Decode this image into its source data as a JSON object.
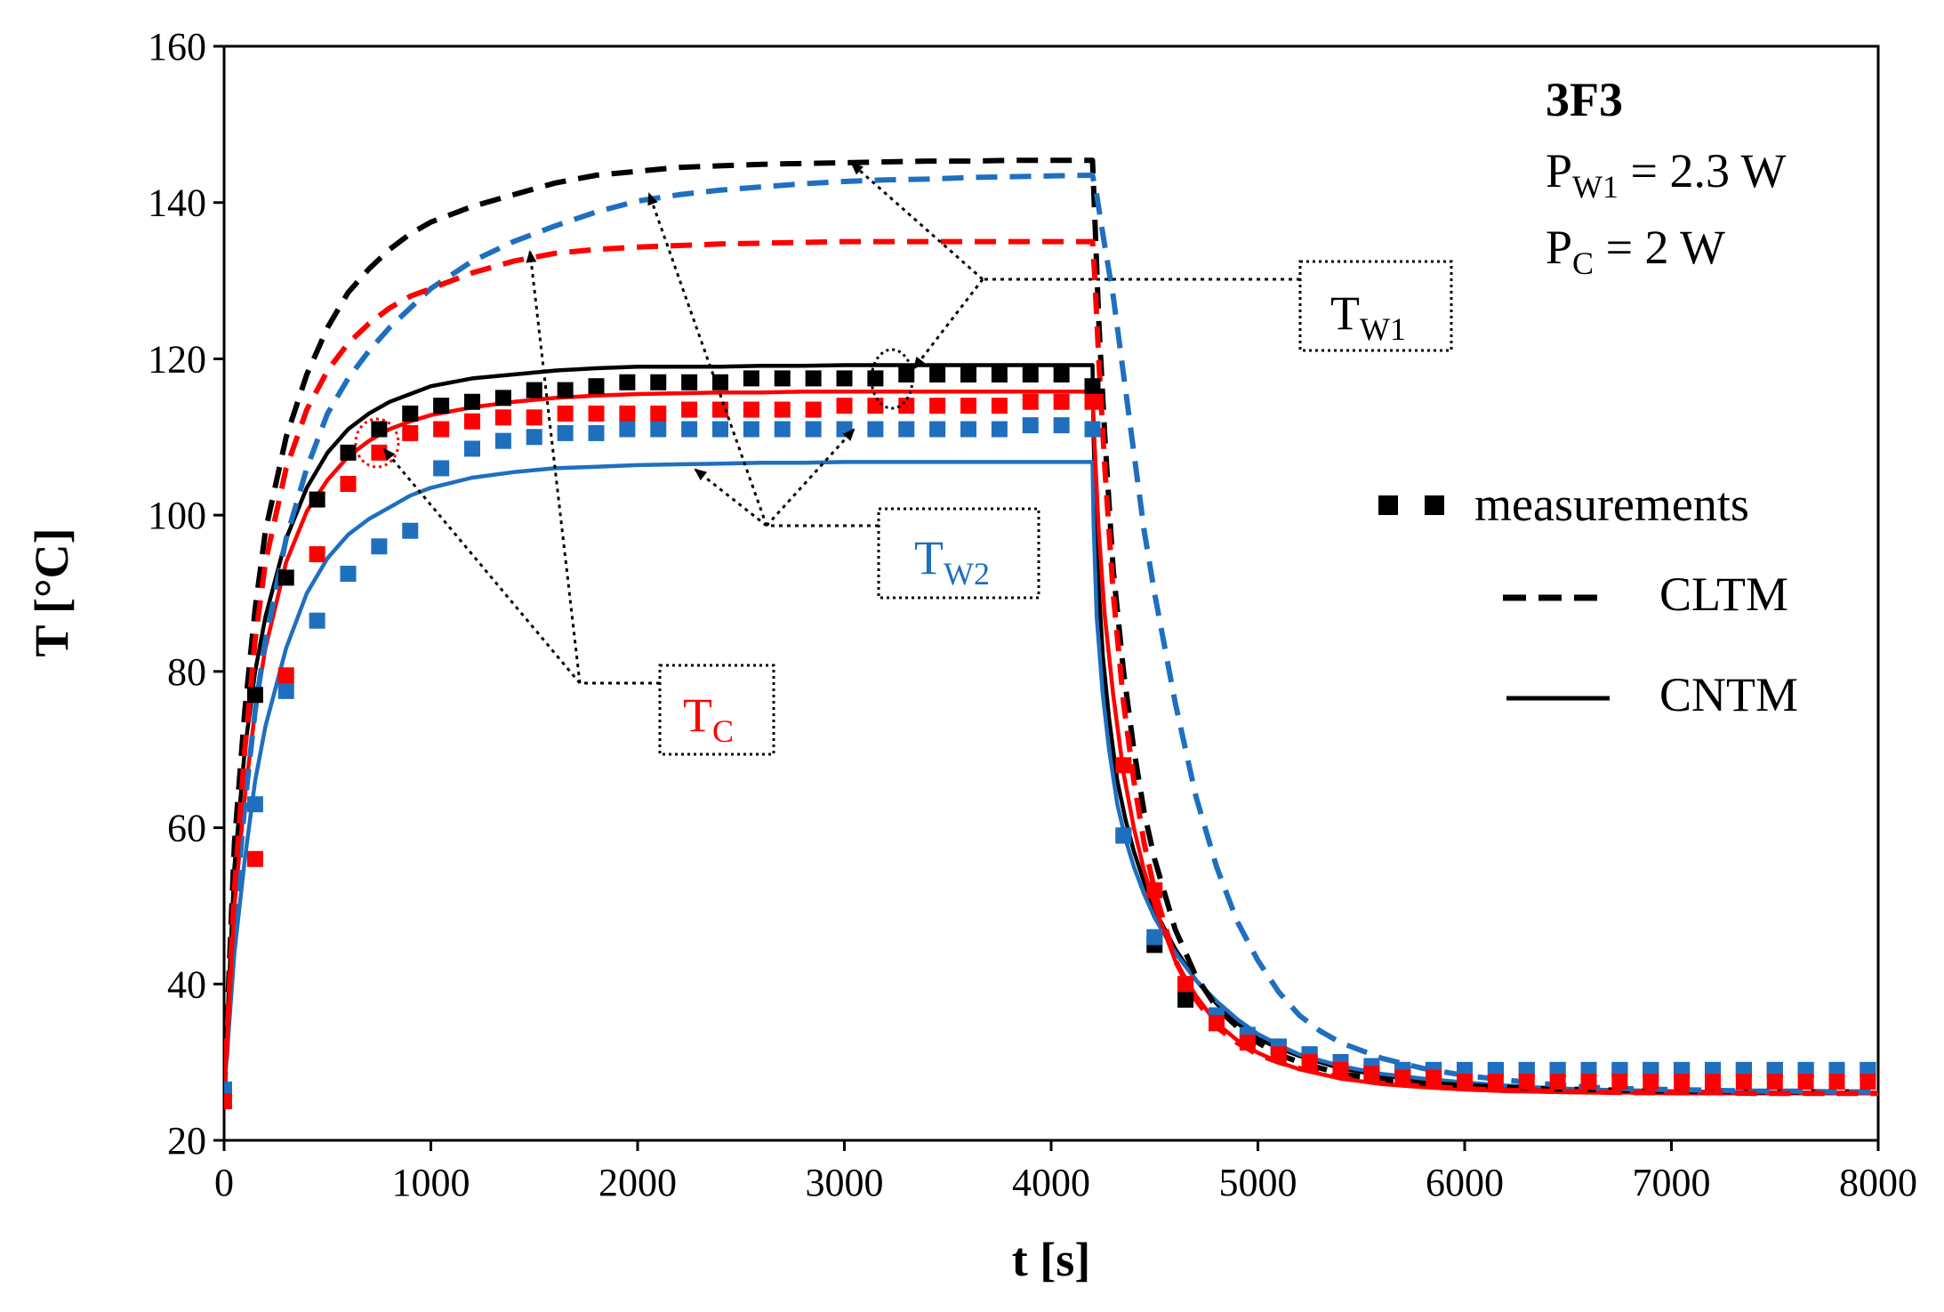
{
  "chart_data": {
    "type": "line",
    "xlabel": "t [s]",
    "ylabel": "T [°C]",
    "xlim": [
      0,
      8000
    ],
    "ylim": [
      20,
      160
    ],
    "xticks": [
      0,
      1000,
      2000,
      3000,
      4000,
      5000,
      6000,
      7000,
      8000
    ],
    "yticks": [
      20,
      40,
      60,
      80,
      100,
      120,
      140,
      160
    ],
    "grid": false,
    "legend_position": "right",
    "info_box": {
      "title": "3F3",
      "line1": {
        "prefix": "P",
        "sub": "W1",
        "suffix": " = 2.3 W"
      },
      "line2": {
        "prefix": "P",
        "sub": "C",
        "suffix": " = 2 W"
      }
    },
    "legend": [
      {
        "label": "measurements",
        "style": "squares"
      },
      {
        "label": "CLTM",
        "style": "dashed"
      },
      {
        "label": "CNTM",
        "style": "solid"
      }
    ],
    "annotations": [
      {
        "id": "tw1",
        "main": "T",
        "sub": "W1",
        "color": "#000000"
      },
      {
        "id": "tw2",
        "main": "T",
        "sub": "W2",
        "color": "#1f6fbf"
      },
      {
        "id": "tc",
        "main": "T",
        "sub": "C",
        "color": "#ff0000"
      }
    ],
    "colors": {
      "TW1": "#000000",
      "TW2": "#1f6fbf",
      "TC": "#ff0000"
    },
    "series": [
      {
        "signal": "TW1",
        "kind": "measurements",
        "color": "#000000",
        "x": [
          0,
          150,
          300,
          450,
          600,
          750,
          900,
          1050,
          1200,
          1350,
          1500,
          1650,
          1800,
          1950,
          2100,
          2250,
          2400,
          2550,
          2700,
          2850,
          3000,
          3150,
          3300,
          3450,
          3600,
          3750,
          3900,
          4050,
          4200,
          4350,
          4500,
          4650,
          4800,
          4950,
          5100,
          5250,
          5400,
          5550,
          5700,
          5850,
          6000,
          6150,
          6300,
          6450,
          6600,
          6750,
          6900,
          7050,
          7200,
          7350,
          7500,
          7650,
          7800,
          7950
        ],
        "y": [
          26,
          77,
          92,
          102,
          108,
          111,
          113,
          114,
          114.5,
          115,
          116,
          116,
          116.5,
          117,
          117,
          117,
          117,
          117.5,
          117.5,
          117.5,
          117.5,
          117.5,
          118,
          118,
          118,
          118,
          118,
          118,
          116.5,
          59,
          45,
          38,
          35,
          33,
          32,
          31,
          30,
          29,
          29,
          29,
          29,
          29,
          29,
          29,
          29,
          29,
          29,
          29,
          29,
          29,
          29,
          29,
          29,
          29
        ]
      },
      {
        "signal": "TW2",
        "kind": "measurements",
        "color": "#1f6fbf",
        "x": [
          0,
          150,
          300,
          450,
          600,
          750,
          900,
          1050,
          1200,
          1350,
          1500,
          1650,
          1800,
          1950,
          2100,
          2250,
          2400,
          2550,
          2700,
          2850,
          3000,
          3150,
          3300,
          3450,
          3600,
          3750,
          3900,
          4050,
          4200,
          4350,
          4500,
          4650,
          4800,
          4950,
          5100,
          5250,
          5400,
          5550,
          5700,
          5850,
          6000,
          6150,
          6300,
          6450,
          6600,
          6750,
          6900,
          7050,
          7200,
          7350,
          7500,
          7650,
          7800,
          7950
        ],
        "y": [
          26.5,
          63,
          77.5,
          86.5,
          92.5,
          96,
          98,
          106,
          108.5,
          109.5,
          110,
          110.5,
          110.5,
          111,
          111,
          111,
          111,
          111,
          111,
          111,
          111,
          111,
          111,
          111,
          111,
          111,
          111.5,
          111.5,
          111,
          59,
          46,
          40,
          36,
          33.5,
          32,
          31,
          30,
          29.5,
          29,
          29,
          29,
          29,
          29,
          29,
          29,
          29,
          29,
          29,
          29,
          29,
          29,
          29,
          29,
          29
        ]
      },
      {
        "signal": "TC",
        "kind": "measurements",
        "color": "#ff0000",
        "x": [
          0,
          150,
          300,
          450,
          600,
          750,
          900,
          1050,
          1200,
          1350,
          1500,
          1650,
          1800,
          1950,
          2100,
          2250,
          2400,
          2550,
          2700,
          2850,
          3000,
          3150,
          3300,
          3450,
          3600,
          3750,
          3900,
          4050,
          4200,
          4350,
          4500,
          4650,
          4800,
          4950,
          5100,
          5250,
          5400,
          5550,
          5700,
          5850,
          6000,
          6150,
          6300,
          6450,
          6600,
          6750,
          6900,
          7050,
          7200,
          7350,
          7500,
          7650,
          7800,
          7950
        ],
        "y": [
          25,
          56,
          79.5,
          95,
          104,
          108,
          110.5,
          111,
          112,
          112.5,
          112.5,
          113,
          113,
          113,
          113,
          113.5,
          113.5,
          113.5,
          113.5,
          113.5,
          114,
          114,
          114,
          114,
          114,
          114,
          114.5,
          114.5,
          114.5,
          68,
          52,
          40,
          35,
          32.5,
          31,
          30,
          29,
          28.5,
          28,
          28,
          27.5,
          27.5,
          27.5,
          27.5,
          27.5,
          27.5,
          27.5,
          27.5,
          27.5,
          27.5,
          27.5,
          27.5,
          27.5,
          27.5
        ]
      },
      {
        "signal": "TW1",
        "kind": "CLTM",
        "color": "#000000",
        "x": [
          0,
          50,
          100,
          150,
          200,
          300,
          400,
          500,
          600,
          700,
          800,
          900,
          1000,
          1200,
          1400,
          1600,
          1800,
          2000,
          2200,
          2400,
          2600,
          2800,
          3000,
          3200,
          3400,
          3600,
          3800,
          4000,
          4200,
          4210,
          4230,
          4260,
          4300,
          4350,
          4400,
          4450,
          4500,
          4600,
          4700,
          4800,
          4900,
          5000,
          5100,
          5200,
          5400,
          5600,
          5800,
          6000,
          6200,
          6400,
          6600,
          6800,
          7000,
          7200,
          7400,
          7600,
          7800,
          8000
        ],
        "y": [
          26,
          58,
          75,
          88,
          98,
          110,
          118,
          124,
          128.5,
          131.5,
          134,
          136,
          137.5,
          139.5,
          141,
          142.5,
          143.5,
          144,
          144.5,
          144.7,
          144.9,
          145,
          145.1,
          145.2,
          145.3,
          145.3,
          145.4,
          145.4,
          145.4,
          139,
          125,
          110,
          93,
          80,
          70,
          62,
          56,
          47,
          41,
          37,
          34.5,
          32.5,
          31,
          30,
          28.5,
          27.8,
          27.3,
          27,
          26.8,
          26.6,
          26.5,
          26.4,
          26.3,
          26.3,
          26.2,
          26.2,
          26.2,
          26.2
        ]
      },
      {
        "signal": "TW2",
        "kind": "CLTM",
        "color": "#1f6fbf",
        "x": [
          0,
          50,
          100,
          150,
          200,
          300,
          400,
          500,
          600,
          700,
          800,
          900,
          1000,
          1200,
          1400,
          1600,
          1800,
          2000,
          2200,
          2400,
          2600,
          2800,
          3000,
          3200,
          3400,
          3600,
          3800,
          4000,
          4200,
          4220,
          4250,
          4300,
          4350,
          4400,
          4450,
          4500,
          4600,
          4700,
          4800,
          4900,
          5000,
          5100,
          5200,
          5300,
          5400,
          5600,
          5800,
          6000,
          6200,
          6400,
          6600,
          6800,
          7000,
          7200,
          7400,
          7600,
          7800,
          8000
        ],
        "y": [
          26,
          48,
          63,
          75,
          84,
          97,
          106,
          113,
          117.5,
          121,
          124,
          126.5,
          129,
          132.5,
          135,
          137,
          138.8,
          140.2,
          141,
          141.6,
          142,
          142.4,
          142.7,
          142.9,
          143,
          143.2,
          143.3,
          143.4,
          143.5,
          141,
          136,
          128,
          118,
          108,
          98,
          90,
          76,
          64,
          55,
          48,
          43,
          39,
          36,
          34,
          32.5,
          30.5,
          29.2,
          28.3,
          27.7,
          27.2,
          26.8,
          26.6,
          26.5,
          26.4,
          26.3,
          26.3,
          26.2,
          26.2
        ]
      },
      {
        "signal": "TC",
        "kind": "CLTM",
        "color": "#ff0000",
        "x": [
          0,
          50,
          100,
          150,
          200,
          300,
          400,
          500,
          600,
          700,
          800,
          900,
          1000,
          1200,
          1400,
          1600,
          1800,
          2000,
          2200,
          2400,
          2600,
          2800,
          3000,
          3200,
          3400,
          3600,
          3800,
          4000,
          4200,
          4210,
          4230,
          4260,
          4300,
          4350,
          4400,
          4450,
          4500,
          4600,
          4700,
          4800,
          4900,
          5000,
          5100,
          5200,
          5400,
          5600,
          5800,
          6000,
          6200,
          6400,
          6600,
          6800,
          7000,
          7200,
          7400,
          7600,
          7800,
          8000
        ],
        "y": [
          26,
          52,
          70,
          84,
          94,
          106,
          113.5,
          118.5,
          122,
          124.5,
          126.5,
          128,
          129,
          131,
          132.5,
          133.5,
          134,
          134.3,
          134.5,
          134.7,
          134.8,
          134.9,
          135,
          135,
          135,
          135,
          135,
          135,
          135,
          131,
          120,
          106,
          90,
          76,
          66,
          58,
          52,
          43,
          38,
          34.5,
          32.5,
          31,
          30,
          29.2,
          28,
          27.3,
          26.9,
          26.6,
          26.4,
          26.3,
          26.2,
          26.1,
          26.1,
          26.1,
          26,
          26,
          26,
          26
        ]
      },
      {
        "signal": "TW1",
        "kind": "CNTM",
        "color": "#000000",
        "x": [
          0,
          50,
          100,
          150,
          200,
          300,
          400,
          500,
          600,
          700,
          800,
          900,
          1000,
          1200,
          1400,
          1600,
          1800,
          2000,
          2200,
          2400,
          2600,
          2800,
          3000,
          3200,
          3400,
          3600,
          3800,
          4000,
          4200,
          4205,
          4220,
          4250,
          4280,
          4320,
          4360,
          4400,
          4450,
          4500,
          4600,
          4700,
          4800,
          4900,
          5000,
          5100,
          5200,
          5400,
          5600,
          5800,
          6000,
          6200,
          6400,
          6600,
          6800,
          7000,
          7200,
          7400,
          7600,
          7800,
          8000
        ],
        "y": [
          26,
          55,
          70,
          80,
          87,
          97,
          103.5,
          108,
          111,
          113,
          114.5,
          115.5,
          116.5,
          117.5,
          118,
          118.5,
          118.8,
          119,
          119,
          119,
          119.1,
          119.1,
          119.2,
          119.2,
          119.2,
          119.2,
          119.2,
          119.2,
          119.2,
          110,
          95,
          82,
          74,
          66,
          61,
          57,
          53,
          49.5,
          44.5,
          40.5,
          37.5,
          35,
          33,
          31.8,
          30.8,
          29.2,
          28.3,
          27.7,
          27.2,
          26.8,
          26.6,
          26.4,
          26.3,
          26.2,
          26.2,
          26.1,
          26.1,
          26,
          26
        ]
      },
      {
        "signal": "TW2",
        "kind": "CNTM",
        "color": "#1f6fbf",
        "x": [
          0,
          50,
          100,
          150,
          200,
          300,
          400,
          500,
          600,
          700,
          800,
          900,
          1000,
          1200,
          1400,
          1600,
          1800,
          2000,
          2200,
          2400,
          2600,
          2800,
          3000,
          3200,
          3400,
          3600,
          3800,
          4000,
          4200,
          4205,
          4220,
          4250,
          4280,
          4320,
          4360,
          4400,
          4450,
          4500,
          4600,
          4700,
          4800,
          4900,
          5000,
          5100,
          5200,
          5400,
          5600,
          5800,
          6000,
          6200,
          6400,
          6600,
          6800,
          7000,
          7200,
          7400,
          7600,
          7800,
          8000
        ],
        "y": [
          26,
          44,
          56,
          66,
          73,
          83,
          90,
          94.5,
          97.5,
          99.5,
          101,
          102.5,
          103.5,
          104.8,
          105.5,
          106,
          106.2,
          106.4,
          106.5,
          106.6,
          106.7,
          106.7,
          106.8,
          106.8,
          106.8,
          106.8,
          106.8,
          106.8,
          106.8,
          99,
          87,
          77,
          70,
          63,
          58.5,
          55,
          51.5,
          48.5,
          44,
          40.5,
          37.8,
          35.5,
          33.6,
          32.2,
          31,
          29.5,
          28.5,
          27.9,
          27.4,
          27,
          26.7,
          26.5,
          26.4,
          26.3,
          26.2,
          26.2,
          26.1,
          26.1,
          26.1
        ]
      },
      {
        "signal": "TC",
        "kind": "CNTM",
        "color": "#ff0000",
        "x": [
          0,
          50,
          100,
          150,
          200,
          300,
          400,
          500,
          600,
          700,
          800,
          900,
          1000,
          1200,
          1400,
          1600,
          1800,
          2000,
          2200,
          2400,
          2600,
          2800,
          3000,
          3200,
          3400,
          3600,
          3800,
          4000,
          4200,
          4210,
          4230,
          4260,
          4300,
          4350,
          4400,
          4450,
          4500,
          4600,
          4700,
          4800,
          4900,
          5000,
          5100,
          5200,
          5400,
          5600,
          5800,
          6000,
          6200,
          6400,
          6600,
          6800,
          7000,
          7200,
          7400,
          7600,
          7800,
          8000
        ],
        "y": [
          26,
          50,
          64,
          75,
          83,
          94,
          100.5,
          104.5,
          107.5,
          109.5,
          111,
          112,
          112.8,
          113.8,
          114.5,
          115,
          115.3,
          115.5,
          115.6,
          115.7,
          115.7,
          115.8,
          115.8,
          115.8,
          115.8,
          115.8,
          115.8,
          115.8,
          115.8,
          109,
          98,
          87,
          77,
          67,
          60,
          54.5,
          50,
          43,
          38.5,
          35,
          32.8,
          31.2,
          30,
          29.1,
          27.9,
          27.2,
          26.8,
          26.5,
          26.3,
          26.2,
          26.1,
          26.1,
          26,
          26,
          26,
          26,
          26,
          26
        ]
      }
    ]
  }
}
